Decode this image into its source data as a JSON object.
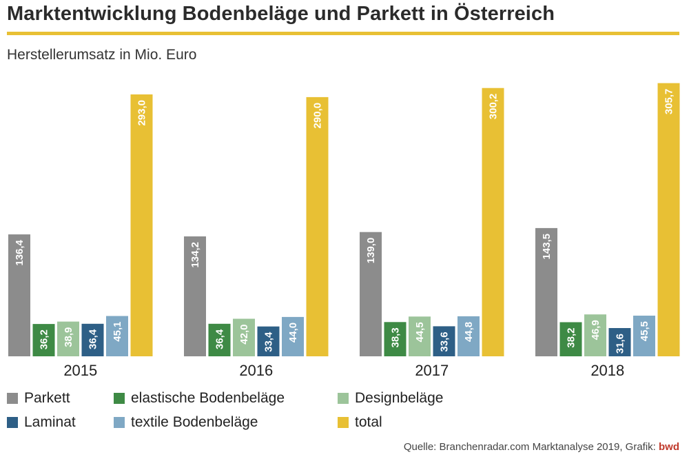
{
  "header": {
    "title": "Marktentwicklung Bodenbeläge und Parkett in Österreich",
    "subtitle": "Herstellerumsatz in Mio. Euro",
    "accent_color": "#E8C034"
  },
  "footer": {
    "source": "Quelle: Branchenradar.com Marktanalyse 2019, Grafik:",
    "brand": "bwd",
    "brand_color": "#C0392B"
  },
  "chart_data": {
    "type": "bar",
    "title": "Marktentwicklung Bodenbeläge und Parkett in Österreich",
    "subtitle": "Herstellerumsatz in Mio. Euro",
    "xlabel": "",
    "ylabel": "",
    "ylim": [
      0,
      310
    ],
    "grid": false,
    "legend_position": "bottom",
    "categories": [
      "2015",
      "2016",
      "2017",
      "2018"
    ],
    "series": [
      {
        "name": "Parkett",
        "color": "#8C8C8C",
        "values": [
          136.4,
          134.2,
          139.0,
          143.5
        ],
        "labels": [
          "136,4",
          "134,2",
          "139,0",
          "143,5"
        ]
      },
      {
        "name": "elastische Bodenbeläge",
        "color": "#3E8A45",
        "values": [
          36.2,
          36.4,
          38.3,
          38.2
        ],
        "labels": [
          "36,2",
          "36,4",
          "38,3",
          "38,2"
        ]
      },
      {
        "name": "Designbeläge",
        "color": "#9CC49A",
        "values": [
          38.9,
          42.0,
          44.5,
          46.9
        ],
        "labels": [
          "38,9",
          "42,0",
          "44,5",
          "46,9"
        ]
      },
      {
        "name": "Laminat",
        "color": "#2E5F86",
        "values": [
          36.4,
          33.4,
          33.6,
          31.6
        ],
        "labels": [
          "36,4",
          "33,4",
          "33,6",
          "31,6"
        ]
      },
      {
        "name": "textile Bodenbeläge",
        "color": "#7FA8C4",
        "values": [
          45.1,
          44.0,
          44.8,
          45.5
        ],
        "labels": [
          "45,1",
          "44,0",
          "44,8",
          "45,5"
        ]
      },
      {
        "name": "total",
        "color": "#E8C034",
        "values": [
          293.0,
          290.0,
          300.2,
          305.7
        ],
        "labels": [
          "293,0",
          "290,0",
          "300,2",
          "305,7"
        ]
      }
    ]
  }
}
